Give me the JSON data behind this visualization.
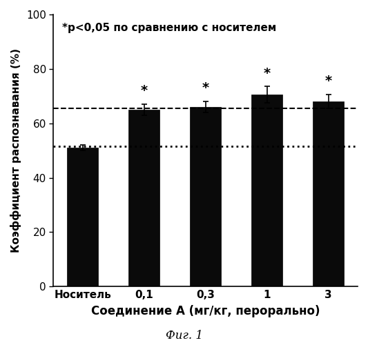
{
  "categories": [
    "Носитель",
    "0,1",
    "0,3",
    "1",
    "3"
  ],
  "values": [
    51.0,
    65.0,
    66.0,
    70.5,
    68.0
  ],
  "errors": [
    1.0,
    2.0,
    2.0,
    3.0,
    2.5
  ],
  "bar_color": "#0a0a0a",
  "bar_width": 0.5,
  "ylim": [
    0,
    100
  ],
  "yticks": [
    0,
    20,
    40,
    60,
    80,
    100
  ],
  "ylabel": "Коэффициент распознавания (%)",
  "xlabel": "Соединение А (мг/кг, перорально)",
  "annotation": "*p<0,05 по сравнению с носителем",
  "dashed_line_y": 65.5,
  "dotted_line_y": 51.5,
  "asterisk_bars": [
    1,
    2,
    3,
    4
  ],
  "figure_label": "Фиг. 1",
  "background_color": "#ffffff",
  "annotation_fontsize": 11,
  "ylabel_fontsize": 11,
  "xlabel_fontsize": 12,
  "tick_fontsize": 11,
  "asterisk_fontsize": 14,
  "figlabel_fontsize": 12
}
